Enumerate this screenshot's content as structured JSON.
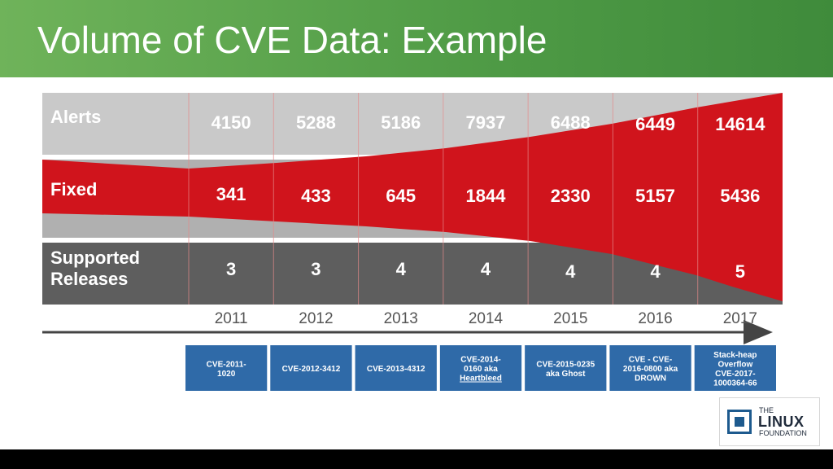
{
  "slide": {
    "title": "Volume of CVE Data: Example"
  },
  "chart_data": {
    "type": "table",
    "columns": [
      "2011",
      "2012",
      "2013",
      "2014",
      "2015",
      "2016",
      "2017"
    ],
    "rows": [
      {
        "label": "Alerts",
        "values": [
          4150,
          5288,
          5186,
          7937,
          6488,
          6449,
          14614
        ]
      },
      {
        "label": "Fixed",
        "values": [
          341,
          433,
          645,
          1844,
          2330,
          5157,
          5436
        ]
      },
      {
        "label": "Supported\nReleases",
        "values": [
          3,
          3,
          4,
          4,
          4,
          4,
          5
        ]
      }
    ],
    "cve_examples": [
      "CVE-2011-\n1020",
      "CVE-2012-3412",
      "CVE-2013-4312",
      "CVE-2014-\n0160 aka\nHeartbleed",
      "CVE-2015-0235\naka Ghost",
      "CVE - CVE-\n2016-0800 aka\nDROWN",
      "Stack-heap\nOverflow\nCVE-2017-\n1000364-66"
    ],
    "colors": {
      "alerts_band": "#c9c9c9",
      "fixed_band": "#b0b0b0",
      "releases_band": "#5e5e5e",
      "wedge": "#d0141c",
      "cve_box": "#2f6aa8"
    }
  },
  "logo": {
    "small": "THE",
    "big": "LINUX",
    "sub": "FOUNDATION"
  }
}
